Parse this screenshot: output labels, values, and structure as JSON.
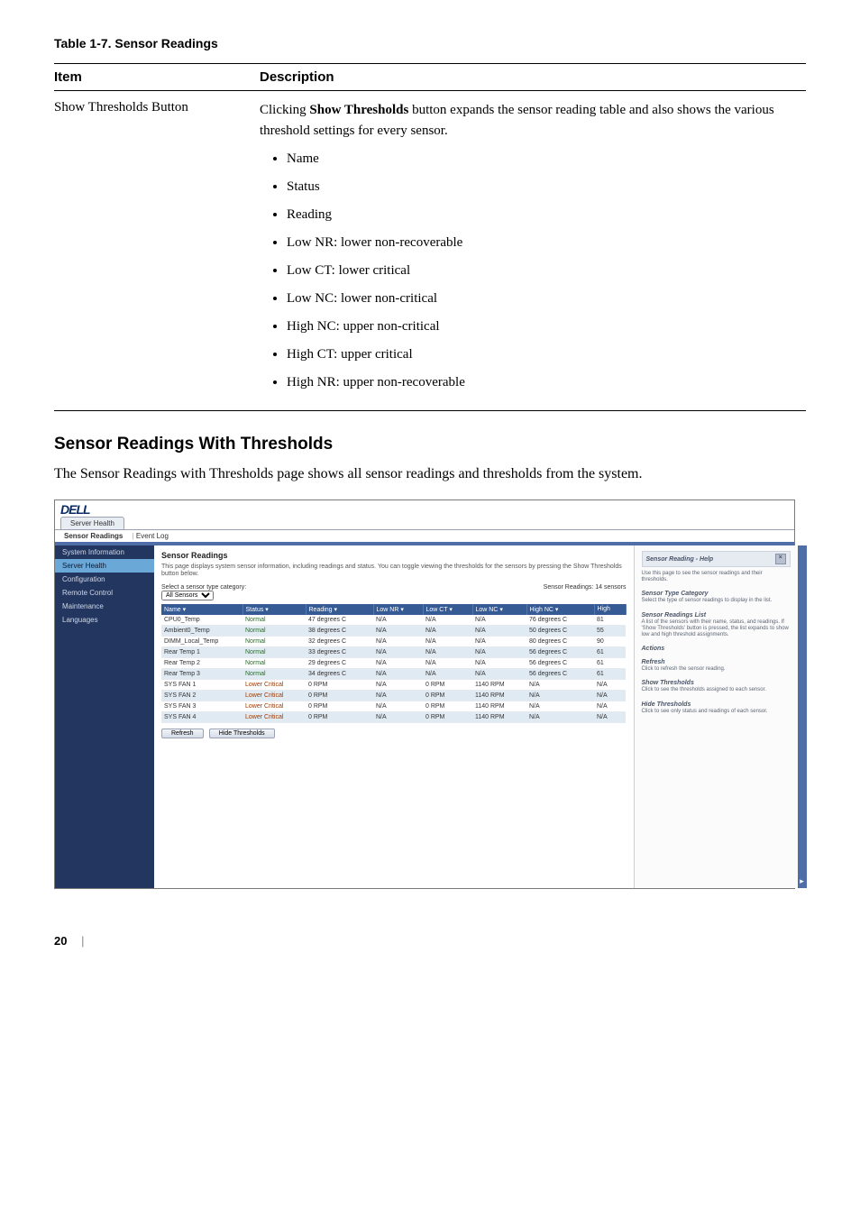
{
  "table_caption": "Table 1-7.    Sensor Readings",
  "columns": {
    "item": "Item",
    "desc": "Description"
  },
  "row": {
    "item": "Show Thresholds Button",
    "desc_lead": "Clicking ",
    "desc_bold": "Show Thresholds",
    "desc_rest": " button expands the sensor reading table and also shows the various threshold settings for every sensor.",
    "bullets": [
      "Name",
      "Status",
      "Reading",
      "Low NR: lower non-recoverable",
      "Low CT: lower critical",
      "Low NC: lower non-critical",
      "High NC: upper non-critical",
      "High CT: upper critical",
      "High NR: upper non-recoverable"
    ]
  },
  "section_heading": "Sensor Readings With Thresholds",
  "section_body": "The Sensor Readings with Thresholds page shows all sensor readings and thresholds from the system.",
  "screenshot": {
    "logo": "DELL",
    "top_tab": "Server Health",
    "sub_tabs": {
      "active": "Sensor Readings",
      "other": "Event Log"
    },
    "sidebar": [
      {
        "label": "System Information",
        "selected": false
      },
      {
        "label": "Server Health",
        "selected": true
      },
      {
        "label": "Configuration",
        "selected": false
      },
      {
        "label": "Remote Control",
        "selected": false
      },
      {
        "label": "Maintenance",
        "selected": false
      },
      {
        "label": "Languages",
        "selected": false
      }
    ],
    "panel_title": "Sensor Readings",
    "panel_desc": "This page displays system sensor information, including readings and status. You can toggle viewing the thresholds for the sensors by pressing the Show Thresholds button below.",
    "filter_label": "Select a sensor type category:",
    "filter_value": "All Sensors",
    "readings_count": "Sensor Readings: 14 sensors",
    "readings": {
      "headers": [
        "Name ▾",
        "Status ▾",
        "Reading ▾",
        "Low NR ▾",
        "Low CT ▾",
        "Low NC ▾",
        "High NC ▾",
        "High"
      ],
      "rows": [
        {
          "cells": [
            "CPU0_Temp",
            "Normal",
            "47 degrees C",
            "N/A",
            "N/A",
            "N/A",
            "76 degrees C",
            "81"
          ],
          "alt": false,
          "crit": false
        },
        {
          "cells": [
            "Ambient0_Temp",
            "Normal",
            "38 degrees C",
            "N/A",
            "N/A",
            "N/A",
            "50 degrees C",
            "55"
          ],
          "alt": true,
          "crit": false
        },
        {
          "cells": [
            "DIMM_Local_Temp",
            "Normal",
            "32 degrees C",
            "N/A",
            "N/A",
            "N/A",
            "80 degrees C",
            "90"
          ],
          "alt": false,
          "crit": false
        },
        {
          "cells": [
            "Rear Temp 1",
            "Normal",
            "33 degrees C",
            "N/A",
            "N/A",
            "N/A",
            "56 degrees C",
            "61"
          ],
          "alt": true,
          "crit": false
        },
        {
          "cells": [
            "Rear Temp 2",
            "Normal",
            "29 degrees C",
            "N/A",
            "N/A",
            "N/A",
            "56 degrees C",
            "61"
          ],
          "alt": false,
          "crit": false
        },
        {
          "cells": [
            "Rear Temp 3",
            "Normal",
            "34 degrees C",
            "N/A",
            "N/A",
            "N/A",
            "56 degrees C",
            "61"
          ],
          "alt": true,
          "crit": false
        },
        {
          "cells": [
            "SYS FAN 1",
            "Lower Critical",
            "0 RPM",
            "N/A",
            "0 RPM",
            "1140 RPM",
            "N/A",
            "N/A"
          ],
          "alt": false,
          "crit": true
        },
        {
          "cells": [
            "SYS FAN 2",
            "Lower Critical",
            "0 RPM",
            "N/A",
            "0 RPM",
            "1140 RPM",
            "N/A",
            "N/A"
          ],
          "alt": true,
          "crit": true
        },
        {
          "cells": [
            "SYS FAN 3",
            "Lower Critical",
            "0 RPM",
            "N/A",
            "0 RPM",
            "1140 RPM",
            "N/A",
            "N/A"
          ],
          "alt": false,
          "crit": true
        },
        {
          "cells": [
            "SYS FAN 4",
            "Lower Critical",
            "0 RPM",
            "N/A",
            "0 RPM",
            "1140 RPM",
            "N/A",
            "N/A"
          ],
          "alt": true,
          "crit": true
        }
      ]
    },
    "buttons": {
      "refresh": "Refresh",
      "hide": "Hide Thresholds"
    },
    "help": {
      "header": "Sensor Reading - Help",
      "intro": "Use this page to see the sensor readings and their thresholds.",
      "blocks": [
        {
          "title": "Sensor Type Category",
          "text": "Select the type of sensor readings to display in the list."
        },
        {
          "title": "Sensor Readings List",
          "text": "A list of the sensors with their name, status, and readings. If 'Show Thresholds' button is pressed, the list expands to show low and high threshold assignments."
        },
        {
          "title": "Actions",
          "text": ""
        },
        {
          "title": "Refresh",
          "text": "Click to refresh the sensor reading."
        },
        {
          "title": "Show Thresholds",
          "text": "Click to see the thresholds assigned to each sensor."
        },
        {
          "title": "Hide Thresholds",
          "text": "Click to see only status and readings of each sensor."
        }
      ]
    }
  },
  "page_number": "20"
}
